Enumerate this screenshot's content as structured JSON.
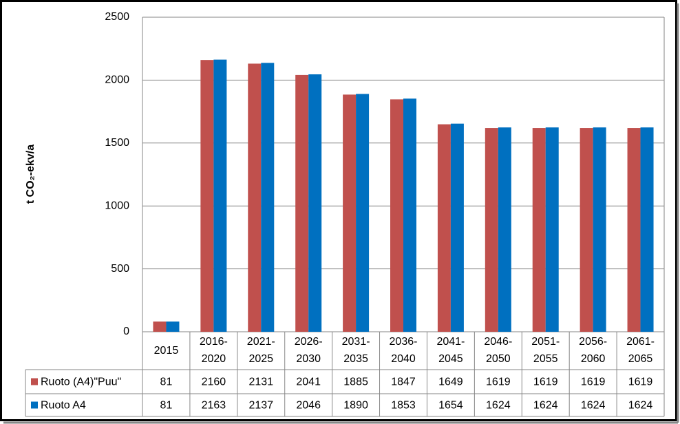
{
  "chart_data": {
    "type": "bar",
    "y_label": "t CO₂-ekv/a",
    "categories": [
      "2015",
      "2016-2020",
      "2021-2025",
      "2026-2030",
      "2031-2035",
      "2036-2040",
      "2041-2045",
      "2046-2050",
      "2051-2055",
      "2056-2060",
      "2061-2065"
    ],
    "series": [
      {
        "name": "Ruoto (A4)\"Puu\"",
        "color": "#c0504d",
        "values": [
          81,
          2160,
          2131,
          2041,
          1885,
          1847,
          1649,
          1619,
          1619,
          1619,
          1619
        ]
      },
      {
        "name": "Ruoto A4",
        "color": "#0070c0",
        "values": [
          81,
          2163,
          2137,
          2046,
          1890,
          1853,
          1654,
          1624,
          1624,
          1624,
          1624
        ]
      }
    ],
    "ylim": [
      0,
      2500
    ],
    "yticks": [
      0,
      500,
      1000,
      1500,
      2000,
      2500
    ],
    "grid": true
  }
}
